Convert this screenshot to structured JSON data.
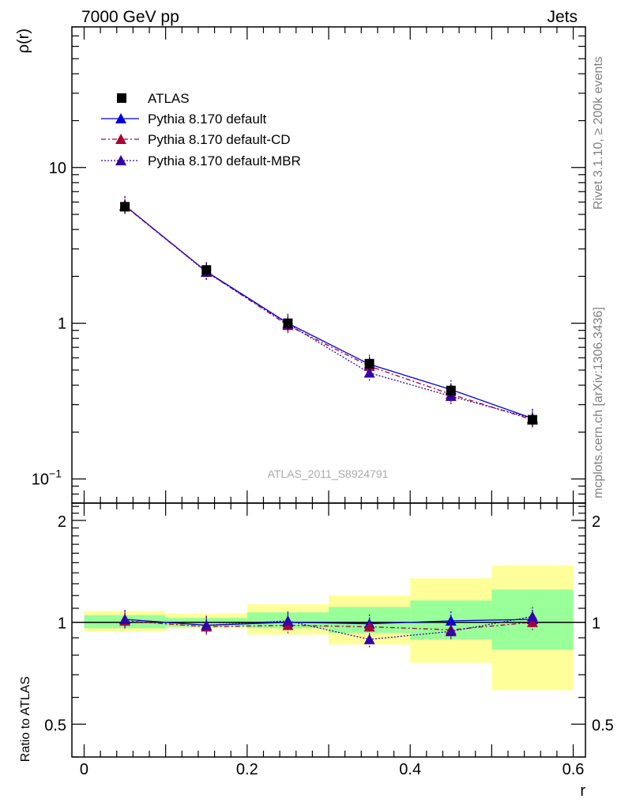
{
  "header": {
    "left": "7000 GeV pp",
    "right": "Jets"
  },
  "side_labels": {
    "top": "Rivet 3.1.10, ≥ 200k events",
    "bottom": "mcplots.cern.ch [arXiv:1306.3436]"
  },
  "analysis_tag": "ATLAS_2011_S8924791",
  "colors": {
    "data": "#000000",
    "default": "#0000dd",
    "cd": "#aa0033",
    "mbr": "#3300aa",
    "band_inner": "#99ff99",
    "band_outer": "#ffff99"
  },
  "chart_data": [
    {
      "type": "line",
      "panel": "main",
      "ylabel": "ρ(r)",
      "yscale": "log",
      "xlim": [
        -0.015,
        0.615
      ],
      "ylim": [
        0.07,
        80
      ],
      "y_ticks": [
        {
          "value": 0.1,
          "base": "10",
          "exp": "−1"
        },
        {
          "value": 1,
          "label": "1"
        },
        {
          "value": 10,
          "label": "10"
        }
      ],
      "x": [
        0.05,
        0.15,
        0.25,
        0.35,
        0.45,
        0.55
      ],
      "series": [
        {
          "name": "ATLAS",
          "key": "data",
          "values": [
            5.6,
            2.2,
            1.0,
            0.55,
            0.37,
            0.24
          ]
        },
        {
          "name": "Pythia 8.170 default",
          "key": "default",
          "values": [
            5.7,
            2.15,
            1.0,
            0.545,
            0.375,
            0.245
          ]
        },
        {
          "name": "Pythia 8.170 default-CD",
          "key": "cd",
          "values": [
            5.65,
            2.14,
            0.97,
            0.53,
            0.35,
            0.24
          ]
        },
        {
          "name": "Pythia 8.170 default-MBR",
          "key": "mbr",
          "values": [
            5.7,
            2.13,
            0.99,
            0.48,
            0.34,
            0.245
          ]
        }
      ]
    },
    {
      "type": "line",
      "panel": "ratio",
      "ylabel": "Ratio to ATLAS",
      "xlabel": "r",
      "yscale": "log",
      "xlim": [
        -0.015,
        0.615
      ],
      "ylim": [
        0.4,
        2.25
      ],
      "y_ticks": [
        {
          "value": 0.5,
          "label": "0.5"
        },
        {
          "value": 1,
          "label": "1"
        },
        {
          "value": 2,
          "label": "2"
        }
      ],
      "x_ticks": [
        {
          "value": 0,
          "label": "0"
        },
        {
          "value": 0.2,
          "label": "0.2"
        },
        {
          "value": 0.4,
          "label": "0.4"
        },
        {
          "value": 0.6,
          "label": "0.6"
        }
      ],
      "bins": [
        [
          0,
          0.1
        ],
        [
          0.1,
          0.2
        ],
        [
          0.2,
          0.3
        ],
        [
          0.3,
          0.4
        ],
        [
          0.4,
          0.5
        ],
        [
          0.5,
          0.6
        ]
      ],
      "band_inner": [
        [
          0.96,
          1.05
        ],
        [
          0.97,
          1.03
        ],
        [
          0.96,
          1.07
        ],
        [
          0.93,
          1.11
        ],
        [
          0.89,
          1.16
        ],
        [
          0.83,
          1.25
        ]
      ],
      "band_outer": [
        [
          0.94,
          1.08
        ],
        [
          0.96,
          1.06
        ],
        [
          0.92,
          1.13
        ],
        [
          0.86,
          1.2
        ],
        [
          0.76,
          1.35
        ],
        [
          0.63,
          1.47
        ]
      ],
      "x": [
        0.05,
        0.15,
        0.25,
        0.35,
        0.45,
        0.55
      ],
      "series": [
        {
          "name": "Pythia 8.170 default",
          "key": "default",
          "values": [
            1.02,
            0.98,
            1.0,
            0.99,
            1.01,
            1.02
          ]
        },
        {
          "name": "Pythia 8.170 default-CD",
          "key": "cd",
          "values": [
            1.01,
            0.97,
            0.98,
            0.97,
            0.95,
            1.0
          ]
        },
        {
          "name": "Pythia 8.170 default-MBR",
          "key": "mbr",
          "values": [
            1.02,
            0.98,
            1.01,
            0.89,
            0.94,
            1.04
          ]
        }
      ]
    }
  ]
}
